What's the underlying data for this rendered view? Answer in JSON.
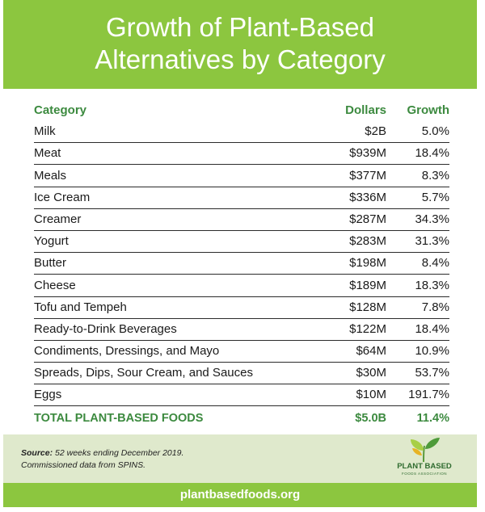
{
  "header": {
    "title_line1": "Growth of Plant-Based",
    "title_line2": "Alternatives by Category"
  },
  "chart_data": {
    "type": "table",
    "columns": [
      "Category",
      "Dollars",
      "Growth"
    ],
    "rows": [
      [
        "Milk",
        "$2B",
        "5.0%"
      ],
      [
        "Meat",
        "$939M",
        "18.4%"
      ],
      [
        "Meals",
        "$377M",
        "8.3%"
      ],
      [
        "Ice Cream",
        "$336M",
        "5.7%"
      ],
      [
        "Creamer",
        "$287M",
        "34.3%"
      ],
      [
        "Yogurt",
        "$283M",
        "31.3%"
      ],
      [
        "Butter",
        "$198M",
        "8.4%"
      ],
      [
        "Cheese",
        "$189M",
        "18.3%"
      ],
      [
        "Tofu and Tempeh",
        "$128M",
        "7.8%"
      ],
      [
        "Ready-to-Drink Beverages",
        "$122M",
        "18.4%"
      ],
      [
        "Condiments, Dressings, and Mayo",
        "$64M",
        "10.9%"
      ],
      [
        "Spreads, Dips, Sour Cream, and Sauces",
        "$30M",
        "53.7%"
      ],
      [
        "Eggs",
        "$10M",
        "191.7%"
      ]
    ],
    "total": [
      "TOTAL PLANT-BASED FOODS",
      "$5.0B",
      "11.4%"
    ]
  },
  "footer": {
    "source_label": "Source:",
    "source_line1": "52 weeks ending December 2019.",
    "source_line2": "Commissioned data from SPINS.",
    "logo_icon": "leaf-sprout-icon",
    "logo_text": "PLANT BASED",
    "logo_subtext": "FOODS ASSOCIATION"
  },
  "bottom": {
    "url": "plantbasedfoods.org"
  },
  "colors": {
    "brand_green": "#8cc63f",
    "header_text_green": "#3c8a3f",
    "footer_bg": "#dfe9cc"
  }
}
